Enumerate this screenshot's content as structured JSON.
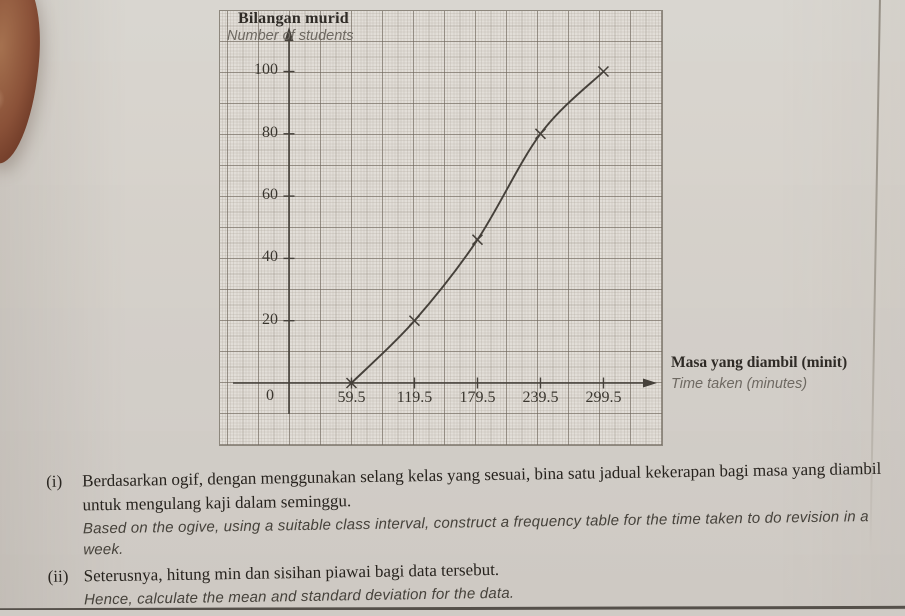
{
  "chart_data": {
    "type": "line",
    "subtype": "ogive-cumulative-frequency",
    "title": "Bilangan murid",
    "title_translation": "Number of students",
    "xlabel": "Masa yang diambil (minit)",
    "xlabel_translation": "Time taken (minutes)",
    "x": [
      59.5,
      119.5,
      179.5,
      239.5,
      299.5
    ],
    "y": [
      0,
      20,
      46,
      80,
      100
    ],
    "x_tick_labels": [
      "59.5",
      "119.5",
      "179.5",
      "239.5",
      "299.5"
    ],
    "y_tick_values": [
      20,
      40,
      60,
      80,
      100
    ],
    "y_tick_labels_top_to_bottom": [
      "100",
      "80",
      "60",
      "40",
      "20"
    ],
    "origin_label": "0",
    "marker": "x-cross",
    "grid": "millimeter-graph-paper",
    "xlim": [
      0,
      340
    ],
    "ylim": [
      0,
      110
    ],
    "curve_color": "#45403a"
  },
  "questions": {
    "i": {
      "numeral": "(i)",
      "malay": "Berdasarkan ogif, dengan menggunakan selang kelas yang sesuai, bina satu jadual kekerapan bagi masa yang diambil untuk mengulang kaji dalam seminggu.",
      "english": "Based on the ogive, using a suitable class interval, construct a frequency table for the time taken to do revision in a week."
    },
    "ii": {
      "numeral": "(ii)",
      "malay": "Seterusnya, hitung min dan sisihan piawai bagi data tersebut.",
      "english": "Hence, calculate the mean and standard deviation for the data."
    }
  }
}
